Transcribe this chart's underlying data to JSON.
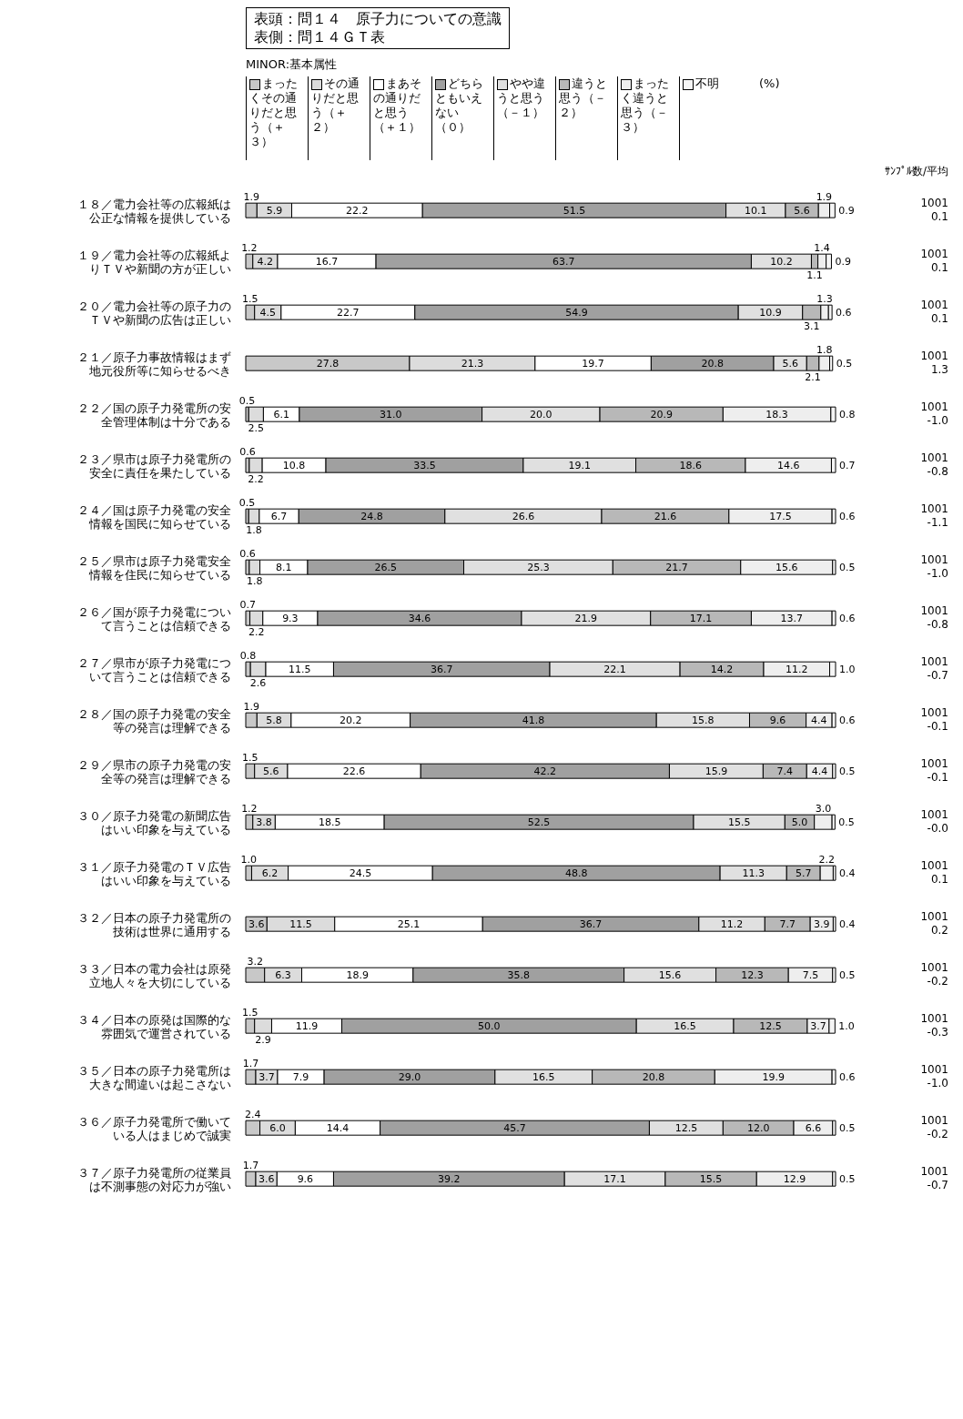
{
  "chart_data": {
    "type": "bar",
    "orientation": "horizontal",
    "stacked": true,
    "title": "表頭：問１４　原子力についての意識",
    "subtitle": "表側：問１４ＧＴ表",
    "legend": "top",
    "tick_labels": "y",
    "categories": [
      "１８／電力会社等の広報紙は公正な情報を提供している",
      "１９／電力会社等の広報紙よりＴＶや新聞の方が正しい",
      "２０／電力会社等の原子力のＴＶや新聞の広告は正しい",
      "２１／原子力事故情報はまず地元役所等に知らせるべき",
      "２２／国の原子力発電所の安全管理体制は十分である",
      "２３／県市は原子力発電所の安全に責任を果たしている",
      "２４／国は原子力発電の安全情報を国民に知らせている",
      "２５／県市は原子力発電安全情報を住民に知らせている",
      "２６／国が原子力発電について言うことは信頼できる",
      "２７／県市が原子力発電について言うことは信頼できる",
      "２８／国の原子力発電の安全等の発言は理解できる",
      "２９／県市の原子力発電の安全等の発言は理解できる",
      "３０／原子力発電の新聞広告はいい印象を与えている",
      "３１／原子力発電のＴＶ広告はいい印象を与えている",
      "３２／日本の原子力発電所の技術は世界に通用する",
      "３３／日本の電力会社は原発立地人々を大切にしている",
      "３４／日本の原発は国際的な雰囲気で運営されている",
      "３５／日本の原子力発電所は大きな間違いは起こさない",
      "３６／原子力発電所で働いている人はまじめで誠実",
      "３７／原子力発電所の従業員は不測事態の対応力が強い"
    ],
    "series": [
      {
        "name": "まったくその通りだと思う（＋３）",
        "color": "#c8c8c8",
        "values": [
          1.9,
          1.2,
          1.5,
          27.8,
          0.5,
          0.6,
          0.5,
          0.6,
          0.7,
          0.8,
          1.9,
          1.5,
          1.2,
          1.0,
          3.6,
          3.2,
          1.5,
          1.7,
          2.4,
          1.7
        ],
        "value_labels": [
          "1.9",
          "1.2",
          "1.5",
          "27.8",
          "0.5",
          "0.6",
          "0.5",
          "0.6",
          "0.7",
          "0.8",
          "1.9",
          "1.5",
          "1.2",
          "1.0",
          "3.6",
          "3.2",
          "1.5",
          "1.7",
          "2.4",
          "1.7"
        ]
      },
      {
        "name": "その通りだと思う（＋２）",
        "color": "#dcdcdc",
        "values": [
          5.9,
          4.2,
          4.5,
          21.3,
          2.5,
          2.2,
          1.8,
          1.8,
          2.2,
          2.6,
          5.8,
          5.6,
          3.8,
          6.2,
          11.5,
          6.3,
          2.9,
          3.7,
          6.0,
          3.6
        ],
        "value_labels": [
          "5.9",
          "4.2",
          "4.5",
          "21.3",
          "2.5",
          "2.2",
          "1.8",
          "1.8",
          "2.2",
          "2.6",
          "5.8",
          "5.6",
          "3.8",
          "6.2",
          "11.5",
          "6.3",
          "2.9",
          "3.7",
          "6.0",
          "3.6"
        ]
      },
      {
        "name": "まあその通りだと思う（＋１）",
        "color": "#ffffff",
        "values": [
          22.2,
          16.7,
          22.7,
          19.7,
          6.1,
          10.8,
          6.7,
          8.1,
          9.3,
          11.5,
          20.2,
          22.6,
          18.5,
          24.5,
          25.1,
          18.9,
          11.9,
          7.9,
          14.4,
          9.6
        ],
        "value_labels": [
          "22.2",
          "16.7",
          "22.7",
          "19.7",
          "6.1",
          "10.8",
          "6.7",
          "8.1",
          "9.3",
          "11.5",
          "20.2",
          "22.6",
          "18.5",
          "24.5",
          "25.1",
          "18.9",
          "11.9",
          "7.9",
          "14.4",
          "9.6"
        ]
      },
      {
        "name": "どちらともいえない（０）",
        "color": "#a0a0a0",
        "values": [
          51.5,
          63.7,
          54.9,
          20.8,
          31.0,
          33.5,
          24.8,
          26.5,
          34.6,
          36.7,
          41.8,
          42.2,
          52.5,
          48.8,
          36.7,
          35.8,
          50.0,
          29.0,
          45.7,
          39.2
        ],
        "value_labels": [
          "51.5",
          "63.7",
          "54.9",
          "20.8",
          "31.0",
          "33.5",
          "24.8",
          "26.5",
          "34.6",
          "36.7",
          "41.8",
          "42.2",
          "52.5",
          "48.8",
          "36.7",
          "35.8",
          "50.0",
          "29.0",
          "45.7",
          "39.2"
        ]
      },
      {
        "name": "やや違うと思う（－１）",
        "color": "#e0e0e0",
        "values": [
          10.1,
          10.2,
          10.9,
          5.6,
          20.0,
          19.1,
          26.6,
          25.3,
          21.9,
          22.1,
          15.8,
          15.9,
          15.5,
          11.3,
          11.2,
          15.6,
          16.5,
          16.5,
          12.5,
          17.1
        ],
        "value_labels": [
          "10.1",
          "10.2",
          "10.9",
          "5.6",
          "20.0",
          "19.1",
          "26.6",
          "25.3",
          "21.9",
          "22.1",
          "15.8",
          "15.9",
          "15.5",
          "11.3",
          "11.2",
          "15.6",
          "16.5",
          "16.5",
          "12.5",
          "17.1"
        ]
      },
      {
        "name": "違うと思う（－２）",
        "color": "#b8b8b8",
        "values": [
          5.6,
          1.1,
          3.1,
          2.1,
          20.9,
          18.6,
          21.6,
          21.7,
          17.1,
          14.2,
          9.6,
          7.4,
          5.0,
          5.7,
          7.7,
          12.3,
          12.5,
          20.8,
          12.0,
          15.5
        ],
        "value_labels": [
          "5.6",
          "1.1",
          "3.1",
          "2.1",
          "20.9",
          "18.6",
          "21.6",
          "21.7",
          "17.1",
          "14.2",
          "9.6",
          "7.4",
          "5.0",
          "5.7",
          "7.7",
          "12.3",
          "12.5",
          "20.8",
          "12.0",
          "15.5"
        ]
      },
      {
        "name": "まったく違うと思う（－３）",
        "color": "#eeeeee",
        "values": [
          1.9,
          1.4,
          1.3,
          1.8,
          18.3,
          14.6,
          17.5,
          15.6,
          13.7,
          11.2,
          4.4,
          4.4,
          3.0,
          2.2,
          3.9,
          7.5,
          3.7,
          19.9,
          6.6,
          12.9
        ],
        "value_labels": [
          "1.9",
          "1.4",
          "1.3",
          "1.8",
          "18.3",
          "14.6",
          "17.5",
          "15.6",
          "13.7",
          "11.2",
          "4.4",
          "4.4",
          "3.0",
          "2.2",
          "3.9",
          "7.5",
          "3.7",
          "19.9",
          "6.6",
          "12.9"
        ]
      },
      {
        "name": "不明",
        "color": "#f5f5f5",
        "values": [
          0.9,
          0.9,
          0.6,
          0.5,
          0.8,
          0.7,
          0.6,
          0.5,
          0.6,
          1.0,
          0.6,
          0.5,
          0.5,
          0.4,
          0.4,
          0.5,
          1.0,
          0.6,
          0.5,
          0.5
        ],
        "value_labels": [
          "0.9",
          "0.9",
          "0.6",
          "0.5",
          "0.8",
          "0.7",
          "0.6",
          "0.5",
          "0.6",
          "1.0",
          "0.6",
          "0.5",
          "0.5",
          "0.4",
          "0.4",
          "0.5",
          "1.0",
          "0.6",
          "0.5",
          "0.5"
        ]
      }
    ],
    "annotations": [
      "MINOR:基本属性",
      "(%)",
      "ｻﾝﾌﾟﾙ数/平均",
      "1001\n0.1",
      "1001\n0.1",
      "1001\n0.1",
      "1001\n1.3",
      "1001\n-1.0",
      "1001\n-0.8",
      "1001\n-1.1",
      "1001\n-1.0",
      "1001\n-0.8",
      "1001\n-0.7",
      "1001\n-0.1",
      "1001\n-0.1",
      "1001\n-0.0",
      "1001\n0.1",
      "1001\n0.2",
      "1001\n-0.2",
      "1001\n-0.3",
      "1001\n-1.0",
      "1001\n-0.2",
      "1001\n-0.7"
    ]
  }
}
